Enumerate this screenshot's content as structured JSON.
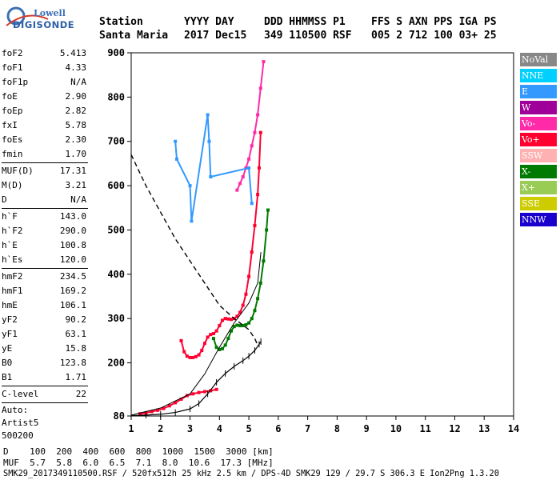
{
  "logo": {
    "line1": "Lowell",
    "line2": "DIGISONDE"
  },
  "header": {
    "labels": [
      "Station",
      "YYYY DAY",
      "DDD HHMMSS P1",
      "FFS S AXN PPS IGA PS"
    ],
    "values": [
      "Santa Maria",
      "2017 Dec15",
      "349 110500 RSF",
      "005 2 712 100 03+ 25"
    ]
  },
  "scaled": {
    "group1": [
      {
        "k": "foF2",
        "v": "5.413"
      },
      {
        "k": "foF1",
        "v": "4.33"
      },
      {
        "k": "foF1p",
        "v": "N/A"
      },
      {
        "k": "foE",
        "v": "2.90"
      },
      {
        "k": "foEp",
        "v": "2.82"
      },
      {
        "k": "fxI",
        "v": "5.78"
      },
      {
        "k": "foEs",
        "v": "2.30"
      },
      {
        "k": "fmin",
        "v": "1.70"
      }
    ],
    "group2": [
      {
        "k": "MUF(D)",
        "v": "17.31"
      },
      {
        "k": "M(D)",
        "v": "3.21"
      },
      {
        "k": "D",
        "v": "N/A"
      }
    ],
    "group3": [
      {
        "k": "h`F",
        "v": "143.0"
      },
      {
        "k": "h`F2",
        "v": "290.0"
      },
      {
        "k": "h`E",
        "v": "100.8"
      },
      {
        "k": "h`Es",
        "v": "120.0"
      }
    ],
    "group4": [
      {
        "k": "hmF2",
        "v": "234.5"
      },
      {
        "k": "hmF1",
        "v": "169.2"
      },
      {
        "k": "hmE",
        "v": "106.1"
      },
      {
        "k": "yF2",
        "v": "90.2"
      },
      {
        "k": "yF1",
        "v": "63.1"
      },
      {
        "k": "yE",
        "v": "15.8"
      },
      {
        "k": "B0",
        "v": "123.8"
      },
      {
        "k": "B1",
        "v": "1.71"
      }
    ],
    "group5": [
      {
        "k": "C-level",
        "v": "22"
      }
    ],
    "auto": [
      "Auto:",
      "Artist5",
      "500200"
    ]
  },
  "legend": [
    {
      "label": "NoVal",
      "color": "#888888"
    },
    {
      "label": "NNE",
      "color": "#00d0ff"
    },
    {
      "label": "E",
      "color": "#3399ff"
    },
    {
      "label": "W",
      "color": "#a0009a"
    },
    {
      "label": "Vo-",
      "color": "#ff2aa8"
    },
    {
      "label": "Vo+",
      "color": "#ff0030"
    },
    {
      "label": "SSW",
      "color": "#ffb0b0"
    },
    {
      "label": "X-",
      "color": "#007a00"
    },
    {
      "label": "X+",
      "color": "#99cc55"
    },
    {
      "label": "SSE",
      "color": "#cccc00"
    },
    {
      "label": "NNW",
      "color": "#1a00cc"
    }
  ],
  "bottom": {
    "d_row": "D    100  200  400  600  800  1000  1500  3000 [km]",
    "muf_row": "MUF  5.7  5.8  6.0  6.5  7.1  8.0  10.6  17.3 [MHz]",
    "footer": "SMK29_2017349110500.RSF / 520fx512h 25 kHz 2.5 km / DPS-4D SMK29 129 / 29.7 S 306.3 E Ion2Png 1.3.20"
  },
  "chart_data": {
    "type": "scatter",
    "xlim": [
      1,
      14
    ],
    "ylim": [
      80,
      900
    ],
    "x_ticks": [
      1,
      2,
      3,
      4,
      5,
      6,
      7,
      8,
      9,
      10,
      11,
      12,
      13,
      14
    ],
    "y_ticks": [
      80,
      200,
      300,
      400,
      500,
      600,
      700,
      800,
      900
    ],
    "series": [
      {
        "name": "Vo+",
        "color": "#ff0030",
        "x": [
          2.7,
          2.8,
          2.9,
          3.0,
          3.1,
          3.2,
          3.3,
          3.4,
          3.5,
          3.6,
          3.7,
          3.8,
          3.9,
          4.0,
          4.1,
          4.2,
          4.3,
          4.4,
          4.5,
          4.6,
          4.7,
          4.8,
          4.9,
          5.0,
          5.1,
          5.2,
          5.3,
          5.35,
          5.4
        ],
        "y": [
          250,
          225,
          215,
          212,
          212,
          214,
          218,
          228,
          244,
          258,
          264,
          266,
          272,
          284,
          296,
          300,
          299,
          298,
          300,
          305,
          314,
          330,
          355,
          395,
          450,
          510,
          580,
          640,
          720
        ]
      },
      {
        "name": "X-",
        "color": "#007a00",
        "x": [
          3.8,
          3.9,
          4.0,
          4.1,
          4.2,
          4.3,
          4.4,
          4.5,
          4.6,
          4.7,
          4.8,
          4.9,
          5.0,
          5.1,
          5.2,
          5.3,
          5.4,
          5.5,
          5.6,
          5.65
        ],
        "y": [
          255,
          235,
          230,
          232,
          240,
          255,
          272,
          282,
          285,
          284,
          284,
          286,
          290,
          300,
          318,
          345,
          380,
          430,
          500,
          545
        ]
      },
      {
        "name": "Vo-",
        "color": "#ff2aa8",
        "x": [
          4.6,
          4.7,
          4.8,
          4.9,
          5.0,
          5.1,
          5.2,
          5.3,
          5.4,
          5.5
        ],
        "y": [
          590,
          605,
          620,
          640,
          660,
          690,
          720,
          760,
          820,
          880
        ]
      },
      {
        "name": "Vo+",
        "color": "#ff0030",
        "x": [
          1.3,
          1.5,
          1.7,
          1.9,
          2.1,
          2.3,
          2.5,
          2.7,
          2.9,
          3.1,
          3.3,
          3.5,
          3.7,
          3.9
        ],
        "y": [
          85,
          87,
          90,
          93,
          97,
          103,
          110,
          118,
          126,
          130,
          133,
          135,
          137,
          140
        ]
      },
      {
        "name": "E",
        "color": "#3399ff",
        "x": [
          2.5,
          2.55,
          3.0,
          3.05,
          3.6,
          3.65,
          3.7,
          5.0,
          5.1
        ],
        "y": [
          700,
          660,
          600,
          520,
          760,
          700,
          620,
          640,
          560
        ]
      }
    ],
    "fitted_profile": {
      "x": [
        1.0,
        1.5,
        2.0,
        2.5,
        3.0,
        3.3,
        3.6,
        3.9,
        4.2,
        4.5,
        4.8,
        5.0,
        5.2,
        5.35,
        5.41
      ],
      "y": [
        81,
        82,
        84,
        88,
        96,
        108,
        130,
        156,
        176,
        192,
        205,
        215,
        228,
        242,
        248
      ]
    },
    "virtual_height_trace": {
      "x": [
        1.0,
        2.0,
        3.0,
        3.5,
        4.0,
        4.5,
        5.0,
        5.3,
        5.41
      ],
      "y": [
        82,
        98,
        130,
        175,
        235,
        290,
        335,
        380,
        450
      ]
    },
    "plasma_density_profile": {
      "x": [
        1.0,
        1.5,
        2.0,
        2.5,
        3.0,
        3.5,
        4.0,
        4.5,
        5.0,
        5.2,
        5.3
      ],
      "y": [
        670,
        600,
        540,
        480,
        430,
        380,
        330,
        300,
        275,
        255,
        240
      ]
    }
  }
}
